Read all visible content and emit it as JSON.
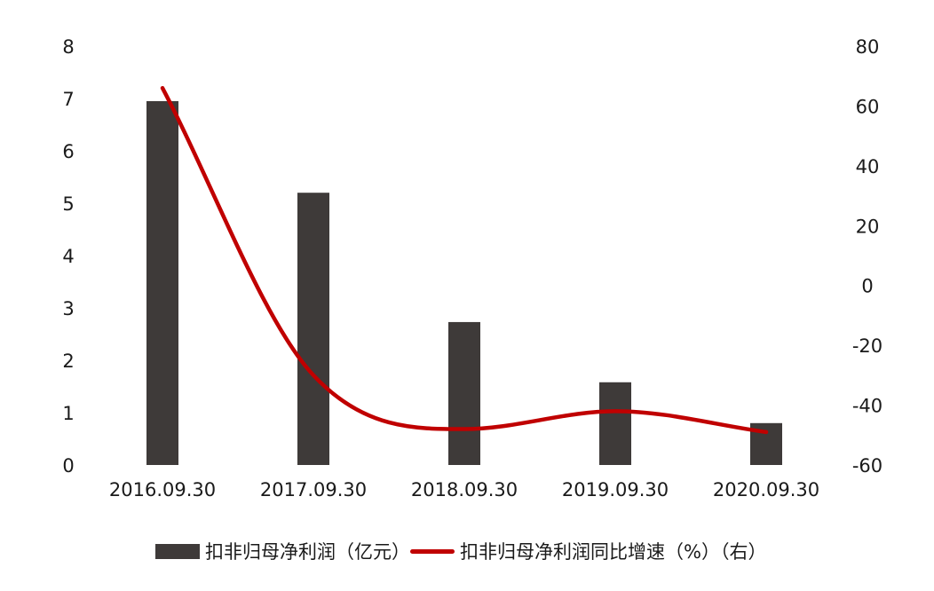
{
  "chart_data": {
    "type": "bar",
    "categories": [
      "2016.09.30",
      "2017.09.30",
      "2018.09.30",
      "2019.09.30",
      "2020.09.30"
    ],
    "series": [
      {
        "name": "扣非归母净利润（亿元）",
        "type": "bar",
        "axis": "left",
        "color": "#3e3a39",
        "values": [
          6.95,
          5.2,
          2.73,
          1.58,
          0.8
        ]
      },
      {
        "name": "扣非归母净利润同比增速（%）（右）",
        "type": "line",
        "axis": "right",
        "color": "#c00000",
        "smooth": true,
        "values": [
          66,
          -30,
          -48,
          -42,
          -49
        ]
      }
    ],
    "y_left": {
      "min": 0,
      "max": 8,
      "ticks": [
        "0",
        "1",
        "2",
        "3",
        "4",
        "5",
        "6",
        "7",
        "8"
      ]
    },
    "y_right": {
      "min": -60,
      "max": 80,
      "ticks": [
        "-60",
        "-40",
        "-20",
        "0",
        "20",
        "40",
        "60",
        "80"
      ]
    },
    "grid": false,
    "legend_position": "bottom"
  }
}
